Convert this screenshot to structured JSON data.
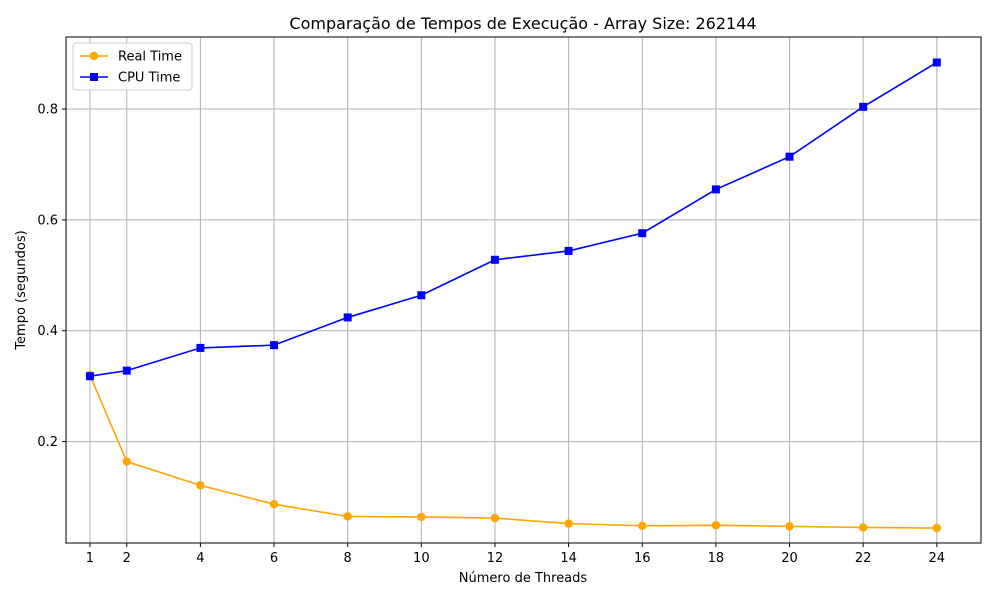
{
  "chart_data": {
    "type": "line",
    "title": "Comparação de Tempos de Execução - Array Size: 262144",
    "xlabel": "Número de Threads",
    "ylabel": "Tempo (segundos)",
    "x": [
      1,
      2,
      4,
      6,
      8,
      10,
      12,
      14,
      16,
      18,
      20,
      22,
      24
    ],
    "x_ticks": [
      "1",
      "2",
      "4",
      "6",
      "8",
      "10",
      "12",
      "14",
      "16",
      "18",
      "20",
      "22",
      "24"
    ],
    "y_ticks": [
      "0.2",
      "0.4",
      "0.6",
      "0.8"
    ],
    "xlim": [
      0.35,
      25.2
    ],
    "ylim": [
      0.017,
      0.93
    ],
    "grid": true,
    "legend_position": "top-left",
    "series": [
      {
        "name": "Real Time",
        "color": "#ffa500",
        "marker": "circle",
        "values": [
          0.32,
          0.164,
          0.121,
          0.087,
          0.065,
          0.064,
          0.062,
          0.052,
          0.048,
          0.049,
          0.047,
          0.045,
          0.044
        ]
      },
      {
        "name": "CPU Time",
        "color": "#0000ff",
        "marker": "square",
        "values": [
          0.318,
          0.328,
          0.369,
          0.374,
          0.424,
          0.464,
          0.528,
          0.544,
          0.576,
          0.655,
          0.714,
          0.804,
          0.884
        ]
      }
    ]
  }
}
